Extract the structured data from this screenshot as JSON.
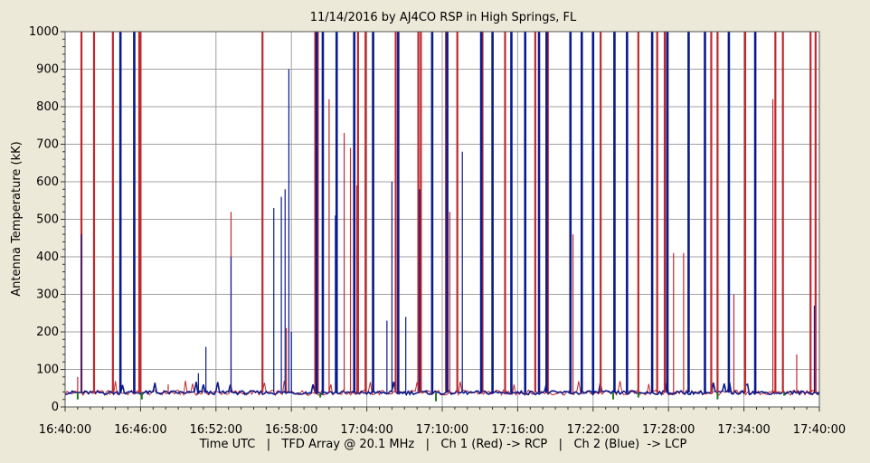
{
  "chart_data": {
    "type": "line",
    "title": "11/14/2016  by  AJ4CO RSP  in  High Springs, FL",
    "ylabel": "Antenna Temperature (kK)",
    "xlabel": "Time UTC   |   TFD Array @ 20.1 MHz   |   Ch 1 (Red) -> RCP   |   Ch 2 (Blue)  -> LCP",
    "xlim_minutes_after_16_40": [
      0,
      60
    ],
    "ylim": [
      0,
      1000
    ],
    "x_ticks": [
      "16:40:00",
      "16:46:00",
      "16:52:00",
      "16:58:00",
      "17:04:00",
      "17:10:00",
      "17:16:00",
      "17:22:00",
      "17:28:00",
      "17:34:00",
      "17:40:00"
    ],
    "y_ticks": [
      0,
      100,
      200,
      300,
      400,
      500,
      600,
      700,
      800,
      900,
      1000
    ],
    "grid": true,
    "legend": "none",
    "colors": {
      "ch1_red": "#c0282d",
      "ch2_blue": "#0a1a8c",
      "green": "#1a7a1a",
      "grid": "#a0a0a0",
      "plot_bg": "#ffffff",
      "frame_bg": "#ece9d8"
    },
    "baseline_kK": 38,
    "series": [
      {
        "color_key": "ch1_red",
        "x_minutes": [
          1.0,
          1.3,
          2.3,
          3.8,
          5.5,
          5.9,
          6.0,
          8.2,
          13.2,
          15.7,
          17.6,
          19.9,
          20.1,
          21.0,
          22.2,
          22.7,
          23.2,
          23.3,
          23.9,
          24.5,
          26.3,
          28.1,
          28.3,
          30.3,
          30.6,
          31.2,
          33.2,
          35.0,
          36.6,
          37.4,
          38.4,
          40.4,
          42.6,
          43.7,
          45.6,
          47.1,
          47.7,
          48.4,
          49.2,
          51.4,
          51.9,
          53.2,
          54.1,
          56.3,
          56.5,
          57.1,
          58.2,
          59.3,
          59.7
        ],
        "values": [
          80,
          1000,
          1000,
          1000,
          1000,
          1000,
          1000,
          60,
          520,
          1000,
          210,
          1000,
          1000,
          820,
          730,
          690,
          590,
          1000,
          1000,
          1000,
          1000,
          1000,
          1000,
          1000,
          520,
          1000,
          1000,
          1000,
          1000,
          1000,
          1000,
          460,
          1000,
          1000,
          1000,
          1000,
          1000,
          410,
          410,
          1000,
          1000,
          300,
          1000,
          820,
          1000,
          1000,
          140,
          1000,
          1000
        ]
      },
      {
        "color_key": "ch2_blue",
        "x_minutes": [
          1.3,
          4.4,
          5.5,
          10.6,
          11.2,
          13.2,
          16.6,
          17.2,
          17.5,
          17.8,
          18.0,
          20.0,
          20.5,
          21.5,
          21.6,
          23.0,
          24.5,
          25.6,
          26.0,
          26.5,
          27.1,
          28.2,
          29.2,
          30.4,
          31.6,
          33.1,
          34.0,
          35.5,
          36.6,
          37.7,
          38.3,
          40.2,
          41.1,
          42.0,
          43.7,
          44.7,
          46.7,
          47.9,
          49.6,
          50.9,
          52.8,
          54.9,
          59.6
        ],
        "values": [
          460,
          1000,
          1000,
          90,
          160,
          400,
          530,
          560,
          580,
          900,
          200,
          1000,
          1000,
          510,
          1000,
          1000,
          1000,
          230,
          600,
          1000,
          240,
          580,
          1000,
          1000,
          680,
          1000,
          1000,
          1000,
          1000,
          1000,
          1000,
          1000,
          1000,
          1000,
          1000,
          1000,
          1000,
          1000,
          1000,
          1000,
          1000,
          1000,
          270
        ]
      },
      {
        "color_key": "green",
        "x_minutes": [
          1.0,
          6.1,
          20.3,
          29.5,
          43.6,
          45.6,
          51.9,
          57.2
        ],
        "values": [
          20,
          20,
          25,
          15,
          20,
          25,
          20,
          30
        ]
      }
    ]
  }
}
